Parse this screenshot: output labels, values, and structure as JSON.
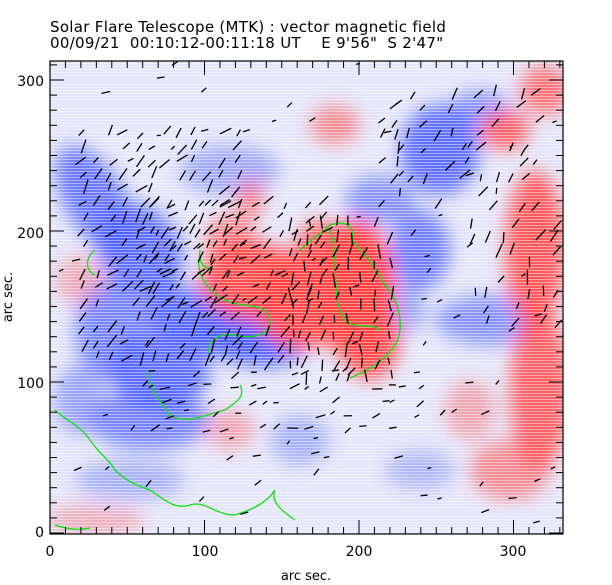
{
  "header": {
    "title": "Solar Flare Telescope (MTK) : vector magnetic field",
    "subtitle": "00/09/21  00:10:12-00:11:18 UT    E 9'56\"  S 2'47\""
  },
  "chart_data": {
    "type": "heatmap",
    "title": "Solar Flare Telescope (MTK) : vector magnetic field",
    "xlabel": "arc sec.",
    "ylabel": "arc sec.",
    "xlim": [
      0,
      332
    ],
    "ylim": [
      0,
      313
    ],
    "xticks": [
      "0",
      "100",
      "200",
      "300"
    ],
    "yticks": [
      "0",
      "100",
      "200",
      "300"
    ],
    "colors": {
      "positive": "#ff4040",
      "negative": "#4a5cff",
      "background": "#eef0ff",
      "contour": "#00e000",
      "vectors": "#000000"
    }
  }
}
